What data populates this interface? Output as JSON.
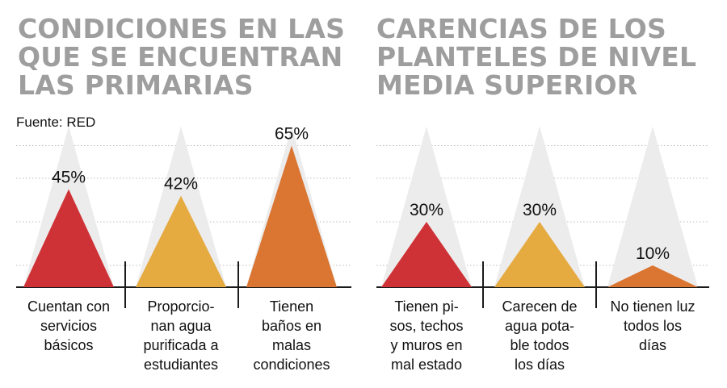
{
  "chart_data": [
    {
      "type": "bar",
      "title": [
        "CONDICIONES EN LAS",
        "QUE SE ENCUENTRAN",
        "LAS PRIMARIAS"
      ],
      "source": "Fuente: RED",
      "unit": "%",
      "ylim": [
        0,
        65
      ],
      "categories": [
        [
          "Cuentan con",
          "servicios",
          "básicos"
        ],
        [
          "Proporcio-",
          "nan agua",
          "purificada a",
          "estudiantes"
        ],
        [
          "Tienen",
          "baños en",
          "malas",
          "condiciones"
        ]
      ],
      "values": [
        45,
        42,
        65
      ],
      "value_labels": [
        "45%",
        "42%",
        "65%"
      ],
      "colors": [
        "#cf3236",
        "#e5aa40",
        "#da7532"
      ]
    },
    {
      "type": "bar",
      "title": [
        "CARENCIAS DE LOS",
        "PLANTELES DE NIVEL",
        "MEDIA SUPERIOR"
      ],
      "unit": "%",
      "ylim": [
        0,
        65
      ],
      "categories": [
        [
          "Tienen pi-",
          "sos, techos",
          "y muros en",
          "mal estado"
        ],
        [
          "Carecen de",
          "agua pota-",
          "ble todos",
          "los días"
        ],
        [
          "No tienen luz",
          "todos los",
          "días"
        ]
      ],
      "values": [
        30,
        30,
        10
      ],
      "value_labels": [
        "30%",
        "30%",
        "10%"
      ],
      "colors": [
        "#cf3236",
        "#e5aa40",
        "#da7532"
      ]
    }
  ]
}
